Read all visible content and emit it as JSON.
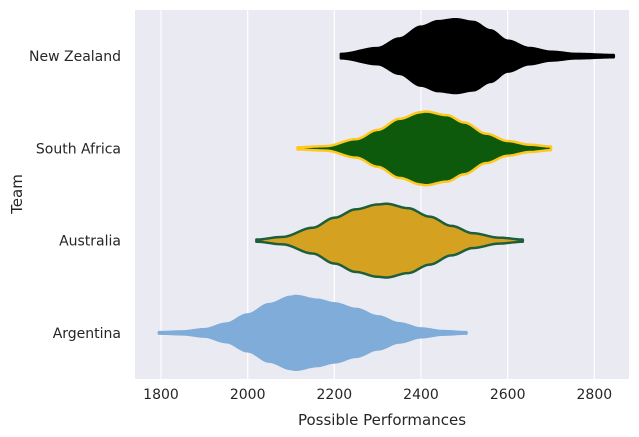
{
  "chart_data": {
    "type": "violin",
    "orientation": "horizontal",
    "xlabel": "Possible Performances",
    "ylabel": "Team",
    "xlim": [
      1740,
      2880
    ],
    "x_ticks": [
      1800,
      2000,
      2200,
      2400,
      2600,
      2800
    ],
    "grid": true,
    "background": "#eaeaf2",
    "categories": [
      "New Zealand",
      "South Africa",
      "Australia",
      "Argentina"
    ],
    "series": [
      {
        "team": "New Zealand",
        "min": 2215,
        "max": 2845,
        "peak": 2480,
        "profile": [
          [
            2215,
            0.06
          ],
          [
            2300,
            0.22
          ],
          [
            2350,
            0.48
          ],
          [
            2400,
            0.8
          ],
          [
            2440,
            0.95
          ],
          [
            2480,
            1.0
          ],
          [
            2520,
            0.93
          ],
          [
            2560,
            0.7
          ],
          [
            2600,
            0.42
          ],
          [
            2650,
            0.22
          ],
          [
            2700,
            0.12
          ],
          [
            2760,
            0.06
          ],
          [
            2845,
            0.03
          ]
        ],
        "fill": "#000000",
        "edge": "#000000"
      },
      {
        "team": "South Africa",
        "min": 2115,
        "max": 2700,
        "peak": 2410,
        "profile": [
          [
            2115,
            0.03
          ],
          [
            2180,
            0.06
          ],
          [
            2250,
            0.25
          ],
          [
            2300,
            0.5
          ],
          [
            2350,
            0.8
          ],
          [
            2400,
            0.98
          ],
          [
            2410,
            1.0
          ],
          [
            2460,
            0.9
          ],
          [
            2500,
            0.7
          ],
          [
            2550,
            0.4
          ],
          [
            2600,
            0.2
          ],
          [
            2650,
            0.1
          ],
          [
            2700,
            0.05
          ]
        ],
        "fill": "#0d5a0d",
        "edge": "#ffc81e"
      },
      {
        "team": "Australia",
        "min": 2020,
        "max": 2635,
        "peak": 2320,
        "profile": [
          [
            2020,
            0.03
          ],
          [
            2080,
            0.1
          ],
          [
            2150,
            0.35
          ],
          [
            2200,
            0.62
          ],
          [
            2250,
            0.85
          ],
          [
            2300,
            0.98
          ],
          [
            2320,
            1.0
          ],
          [
            2370,
            0.88
          ],
          [
            2420,
            0.65
          ],
          [
            2470,
            0.4
          ],
          [
            2520,
            0.2
          ],
          [
            2580,
            0.08
          ],
          [
            2635,
            0.03
          ]
        ],
        "fill": "#d4a121",
        "edge": "#1d5e3b"
      },
      {
        "team": "Argentina",
        "min": 1795,
        "max": 2505,
        "peak": 2110,
        "profile": [
          [
            1795,
            0.02
          ],
          [
            1850,
            0.04
          ],
          [
            1900,
            0.1
          ],
          [
            1950,
            0.25
          ],
          [
            2000,
            0.5
          ],
          [
            2050,
            0.78
          ],
          [
            2100,
            0.98
          ],
          [
            2110,
            1.0
          ],
          [
            2160,
            0.9
          ],
          [
            2200,
            0.8
          ],
          [
            2250,
            0.65
          ],
          [
            2300,
            0.45
          ],
          [
            2350,
            0.26
          ],
          [
            2400,
            0.12
          ],
          [
            2450,
            0.05
          ],
          [
            2505,
            0.02
          ]
        ],
        "fill": "#7facd9",
        "edge": "#7facd9"
      }
    ]
  }
}
